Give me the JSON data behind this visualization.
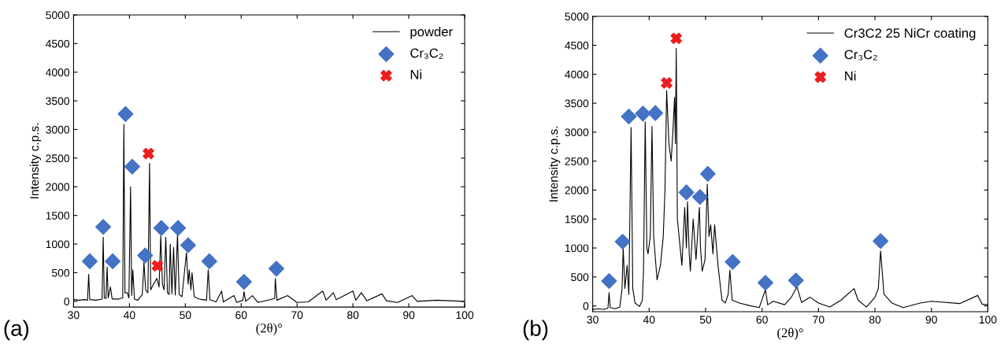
{
  "chart_data": [
    {
      "type": "line",
      "xlabel": "(2θ)°",
      "ylabel": "Intensity c.p.s.",
      "xlim": [
        30,
        100
      ],
      "ylim": [
        -100,
        5000
      ],
      "xticks": [
        30,
        40,
        50,
        60,
        70,
        80,
        90,
        100
      ],
      "yticks": [
        0,
        500,
        1000,
        1500,
        2000,
        2500,
        3000,
        3500,
        4000,
        4500,
        5000
      ],
      "grid": false,
      "legend": "top right",
      "annotations": [
        "(a)"
      ],
      "series": [
        {
          "name": "powder",
          "color": "#000000",
          "marker": "none",
          "x": [
            30,
            31,
            32,
            32.5,
            32.7,
            32.9,
            34,
            35.1,
            35.3,
            35.5,
            35.8,
            36.0,
            36.2,
            36.6,
            36.9,
            38,
            38.8,
            39.0,
            39.2,
            39.6,
            39.9,
            40.2,
            40.4,
            40.6,
            40.9,
            41.5,
            42.3,
            42.6,
            42.9,
            43.3,
            43.6,
            43.8,
            44.3,
            44.9,
            45.3,
            45.6,
            45.9,
            46.2,
            46.5,
            46.8,
            47.1,
            47.3,
            47.6,
            47.9,
            48.2,
            48.6,
            48.9,
            49.4,
            50.2,
            50.5,
            50.7,
            51.0,
            51.2,
            51.6,
            52.5,
            53.8,
            54.1,
            54.4,
            55.5,
            56.5,
            56.8,
            58.7,
            59.2,
            60.3,
            60.5,
            60.8,
            62,
            63,
            66.0,
            66.1,
            66.4,
            68.3,
            70,
            72,
            74.6,
            75.2,
            76.5,
            77,
            80,
            80.5,
            81.5,
            82.5,
            85.2,
            86,
            88,
            90.6,
            91.5,
            95,
            100
          ],
          "values": [
            30,
            20,
            30,
            20,
            470,
            30,
            20,
            40,
            1120,
            60,
            50,
            600,
            60,
            250,
            40,
            40,
            60,
            3090,
            150,
            150,
            60,
            2000,
            100,
            550,
            40,
            20,
            120,
            680,
            200,
            150,
            2410,
            200,
            300,
            400,
            250,
            1140,
            300,
            200,
            1120,
            150,
            120,
            1000,
            130,
            940,
            110,
            1170,
            120,
            80,
            850,
            300,
            550,
            200,
            500,
            80,
            40,
            20,
            550,
            30,
            -10,
            180,
            -10,
            100,
            -20,
            20,
            170,
            0,
            100,
            -20,
            50,
            400,
            20,
            100,
            -20,
            -10,
            180,
            20,
            150,
            30,
            180,
            20,
            150,
            10,
            130,
            10,
            -20,
            100,
            0,
            20,
            0
          ]
        },
        {
          "name": "Cr₃C₂",
          "type": "scatter",
          "color": "#4472c4",
          "marker": "diamond",
          "x": [
            32.9,
            35.3,
            37.0,
            39.3,
            40.5,
            42.8,
            45.7,
            48.7,
            50.5,
            54.3,
            60.5,
            66.3
          ],
          "values": [
            700,
            1300,
            700,
            3270,
            2350,
            800,
            1280,
            1280,
            980,
            700,
            340,
            570
          ]
        },
        {
          "name": "Ni",
          "type": "scatter",
          "color": "#ee1c1c",
          "marker": "cross",
          "x": [
            43.4,
            45.0
          ],
          "values": [
            2580,
            620
          ]
        }
      ]
    },
    {
      "type": "line",
      "xlabel": "(2θ)°",
      "ylabel": "Intensity c.p.s.",
      "xlim": [
        30,
        100
      ],
      "ylim": [
        -100,
        5000
      ],
      "xticks": [
        30,
        40,
        50,
        60,
        70,
        80,
        90,
        100
      ],
      "yticks": [
        0,
        500,
        1000,
        1500,
        2000,
        2500,
        3000,
        3500,
        4000,
        4500,
        5000
      ],
      "grid": false,
      "legend": "top right",
      "annotations": [
        "(b)"
      ],
      "series": [
        {
          "name": "Cr3C2 25 NiCr coating",
          "color": "#000000",
          "marker": "none",
          "x": [
            30,
            31,
            32,
            32.7,
            32.9,
            33.1,
            34,
            34.8,
            35.2,
            35.4,
            35.7,
            36.1,
            36.4,
            36.8,
            37.1,
            37.5,
            38.3,
            38.8,
            39.0,
            39.3,
            39.6,
            39.8,
            40.2,
            40.5,
            40.8,
            41.4,
            42.0,
            42.5,
            42.8,
            43.1,
            43.5,
            43.9,
            44.2,
            44.5,
            44.65,
            44.8,
            45.0,
            45.3,
            45.8,
            46.3,
            46.6,
            46.8,
            47.1,
            47.3,
            47.8,
            48.3,
            48.9,
            49.1,
            49.4,
            49.9,
            50.3,
            50.6,
            50.9,
            51.3,
            51.6,
            52.2,
            52.9,
            53.5,
            54.0,
            54.3,
            54.7,
            56,
            58,
            59.5,
            60.6,
            61,
            62,
            64,
            65.2,
            66.2,
            67,
            68.5,
            70,
            72,
            74,
            76.3,
            77,
            78.5,
            80,
            80.6,
            81.0,
            81.6,
            83,
            85,
            88,
            90,
            95,
            98.2,
            99,
            100
          ],
          "values": [
            -60,
            -50,
            -60,
            -40,
            230,
            -30,
            -50,
            -20,
            300,
            1000,
            300,
            700,
            200,
            3080,
            300,
            50,
            -10,
            100,
            600,
            3180,
            1000,
            900,
            1200,
            3100,
            1200,
            450,
            700,
            1200,
            2000,
            3720,
            2800,
            2500,
            3000,
            3600,
            2800,
            4450,
            1500,
            1200,
            700,
            1700,
            1000,
            1800,
            900,
            600,
            1500,
            800,
            1700,
            1000,
            600,
            800,
            2100,
            1200,
            1400,
            900,
            1400,
            700,
            100,
            50,
            200,
            620,
            100,
            50,
            0,
            -30,
            280,
            20,
            80,
            20,
            150,
            330,
            60,
            150,
            50,
            -20,
            100,
            300,
            100,
            -20,
            150,
            300,
            950,
            200,
            50,
            -30,
            50,
            80,
            40,
            180,
            30,
            20
          ]
        },
        {
          "name": "Cr₃C₂",
          "type": "scatter",
          "color": "#4472c4",
          "marker": "diamond",
          "x": [
            32.9,
            35.3,
            36.4,
            38.9,
            41.1,
            46.6,
            49.0,
            50.4,
            54.8,
            60.6,
            66.0,
            81.0
          ],
          "values": [
            430,
            1110,
            3270,
            3320,
            3330,
            1960,
            1880,
            2280,
            760,
            400,
            440,
            1120
          ]
        },
        {
          "name": "Ni",
          "type": "scatter",
          "color": "#ee1c1c",
          "marker": "cross",
          "x": [
            43.1,
            44.8
          ],
          "values": [
            3850,
            4620
          ]
        }
      ]
    }
  ]
}
